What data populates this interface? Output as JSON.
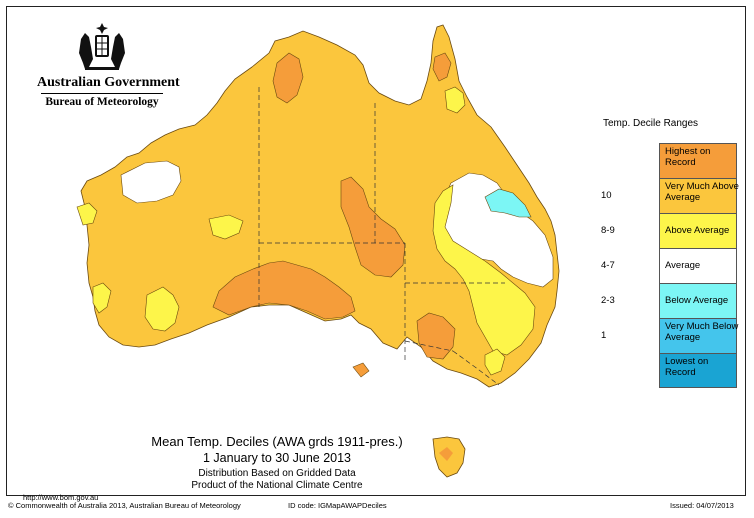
{
  "header": {
    "government": "Australian Government",
    "bureau": "Bureau of Meteorology"
  },
  "legend": {
    "title": "Temp. Decile Ranges",
    "items": [
      {
        "range": "",
        "label": "Highest on Record",
        "color": "#f59d3a"
      },
      {
        "range": "10",
        "label": "Very Much Above Average",
        "color": "#fbc63d"
      },
      {
        "range": "8-9",
        "label": "Above Average",
        "color": "#fdf54a"
      },
      {
        "range": "4-7",
        "label": "Average",
        "color": "#ffffff"
      },
      {
        "range": "2-3",
        "label": "Below Average",
        "color": "#7cf6f5"
      },
      {
        "range": "1",
        "label": "Very Much Below Average",
        "color": "#44c5ec"
      },
      {
        "range": "",
        "label": "Lowest on Record",
        "color": "#1aa4d3"
      }
    ]
  },
  "caption": {
    "title": "Mean Temp. Deciles (AWA grds 1911-pres.)",
    "period": "1 January to 30 June 2013",
    "line3": "Distribution Based on Gridded Data",
    "line4": "Product of the National Climate Centre"
  },
  "footer": {
    "url": "http://www.bom.gov.au",
    "copyright": "© Commonwealth of Australia 2013, Australian Bureau of Meteorology",
    "id_code": "ID code: IGMapAWAPDeciles",
    "issued": "Issued: 04/07/2013"
  }
}
